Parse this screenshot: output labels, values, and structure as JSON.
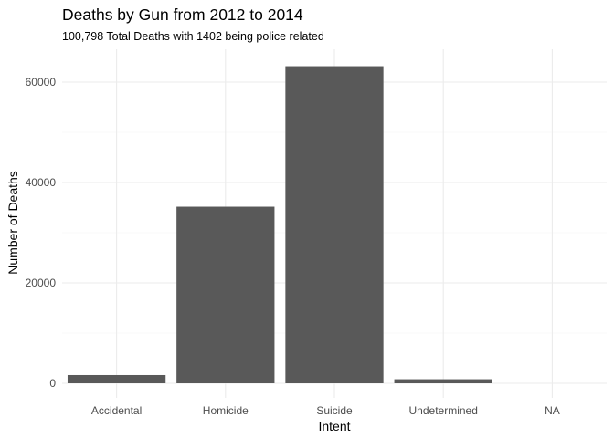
{
  "chart_data": {
    "type": "bar",
    "title": "Deaths by Gun from 2012 to 2014",
    "subtitle": "100,798 Total Deaths with 1402 being police related",
    "xlabel": "Intent",
    "ylabel": "Number of Deaths",
    "categories": [
      "Accidental",
      "Homicide",
      "Suicide",
      "Undetermined",
      "NA"
    ],
    "values": [
      1639,
      35176,
      63175,
      807,
      1
    ],
    "ylim": [
      0,
      66000
    ],
    "yticks": [
      0,
      20000,
      40000,
      60000
    ],
    "ytick_labels": [
      "0",
      "20000",
      "40000",
      "60000"
    ],
    "grid": true,
    "bar_color": "#595959",
    "grid_color": "#ebebeb",
    "background": "#ffffff"
  }
}
